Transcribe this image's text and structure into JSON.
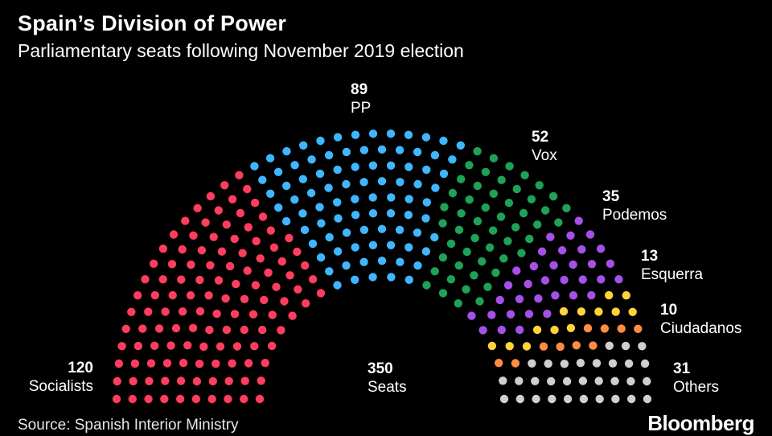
{
  "header": {
    "title": "Spain’s Division of Power",
    "subtitle": "Parliamentary seats following November 2019 election"
  },
  "footer": {
    "source": "Source: Spanish Interior Ministry",
    "brand": "Bloomberg"
  },
  "total": {
    "value": "350",
    "label": "Seats"
  },
  "chart_data": {
    "type": "parliament",
    "title": "Spain’s Division of Power",
    "subtitle": "Parliamentary seats following November 2019 election",
    "total_seats": 350,
    "series": [
      {
        "name": "Socialists",
        "value": 120,
        "color": "#ff3d5e"
      },
      {
        "name": "PP",
        "value": 89,
        "color": "#3fb6ff"
      },
      {
        "name": "Vox",
        "value": 52,
        "color": "#1fa157"
      },
      {
        "name": "Podemos",
        "value": 35,
        "color": "#a550e6"
      },
      {
        "name": "Esquerra",
        "value": 13,
        "color": "#ffd43b"
      },
      {
        "name": "Ciudadanos",
        "value": 10,
        "color": "#ff8c42"
      },
      {
        "name": "Others",
        "value": 31,
        "color": "#cfcfcf"
      }
    ]
  },
  "labels": [
    {
      "value": "120",
      "name": "Socialists"
    },
    {
      "value": "89",
      "name": "PP"
    },
    {
      "value": "52",
      "name": "Vox"
    },
    {
      "value": "35",
      "name": "Podemos"
    },
    {
      "value": "13",
      "name": "Esquerra"
    },
    {
      "value": "10",
      "name": "Ciudadanos"
    },
    {
      "value": "31",
      "name": "Others"
    }
  ]
}
